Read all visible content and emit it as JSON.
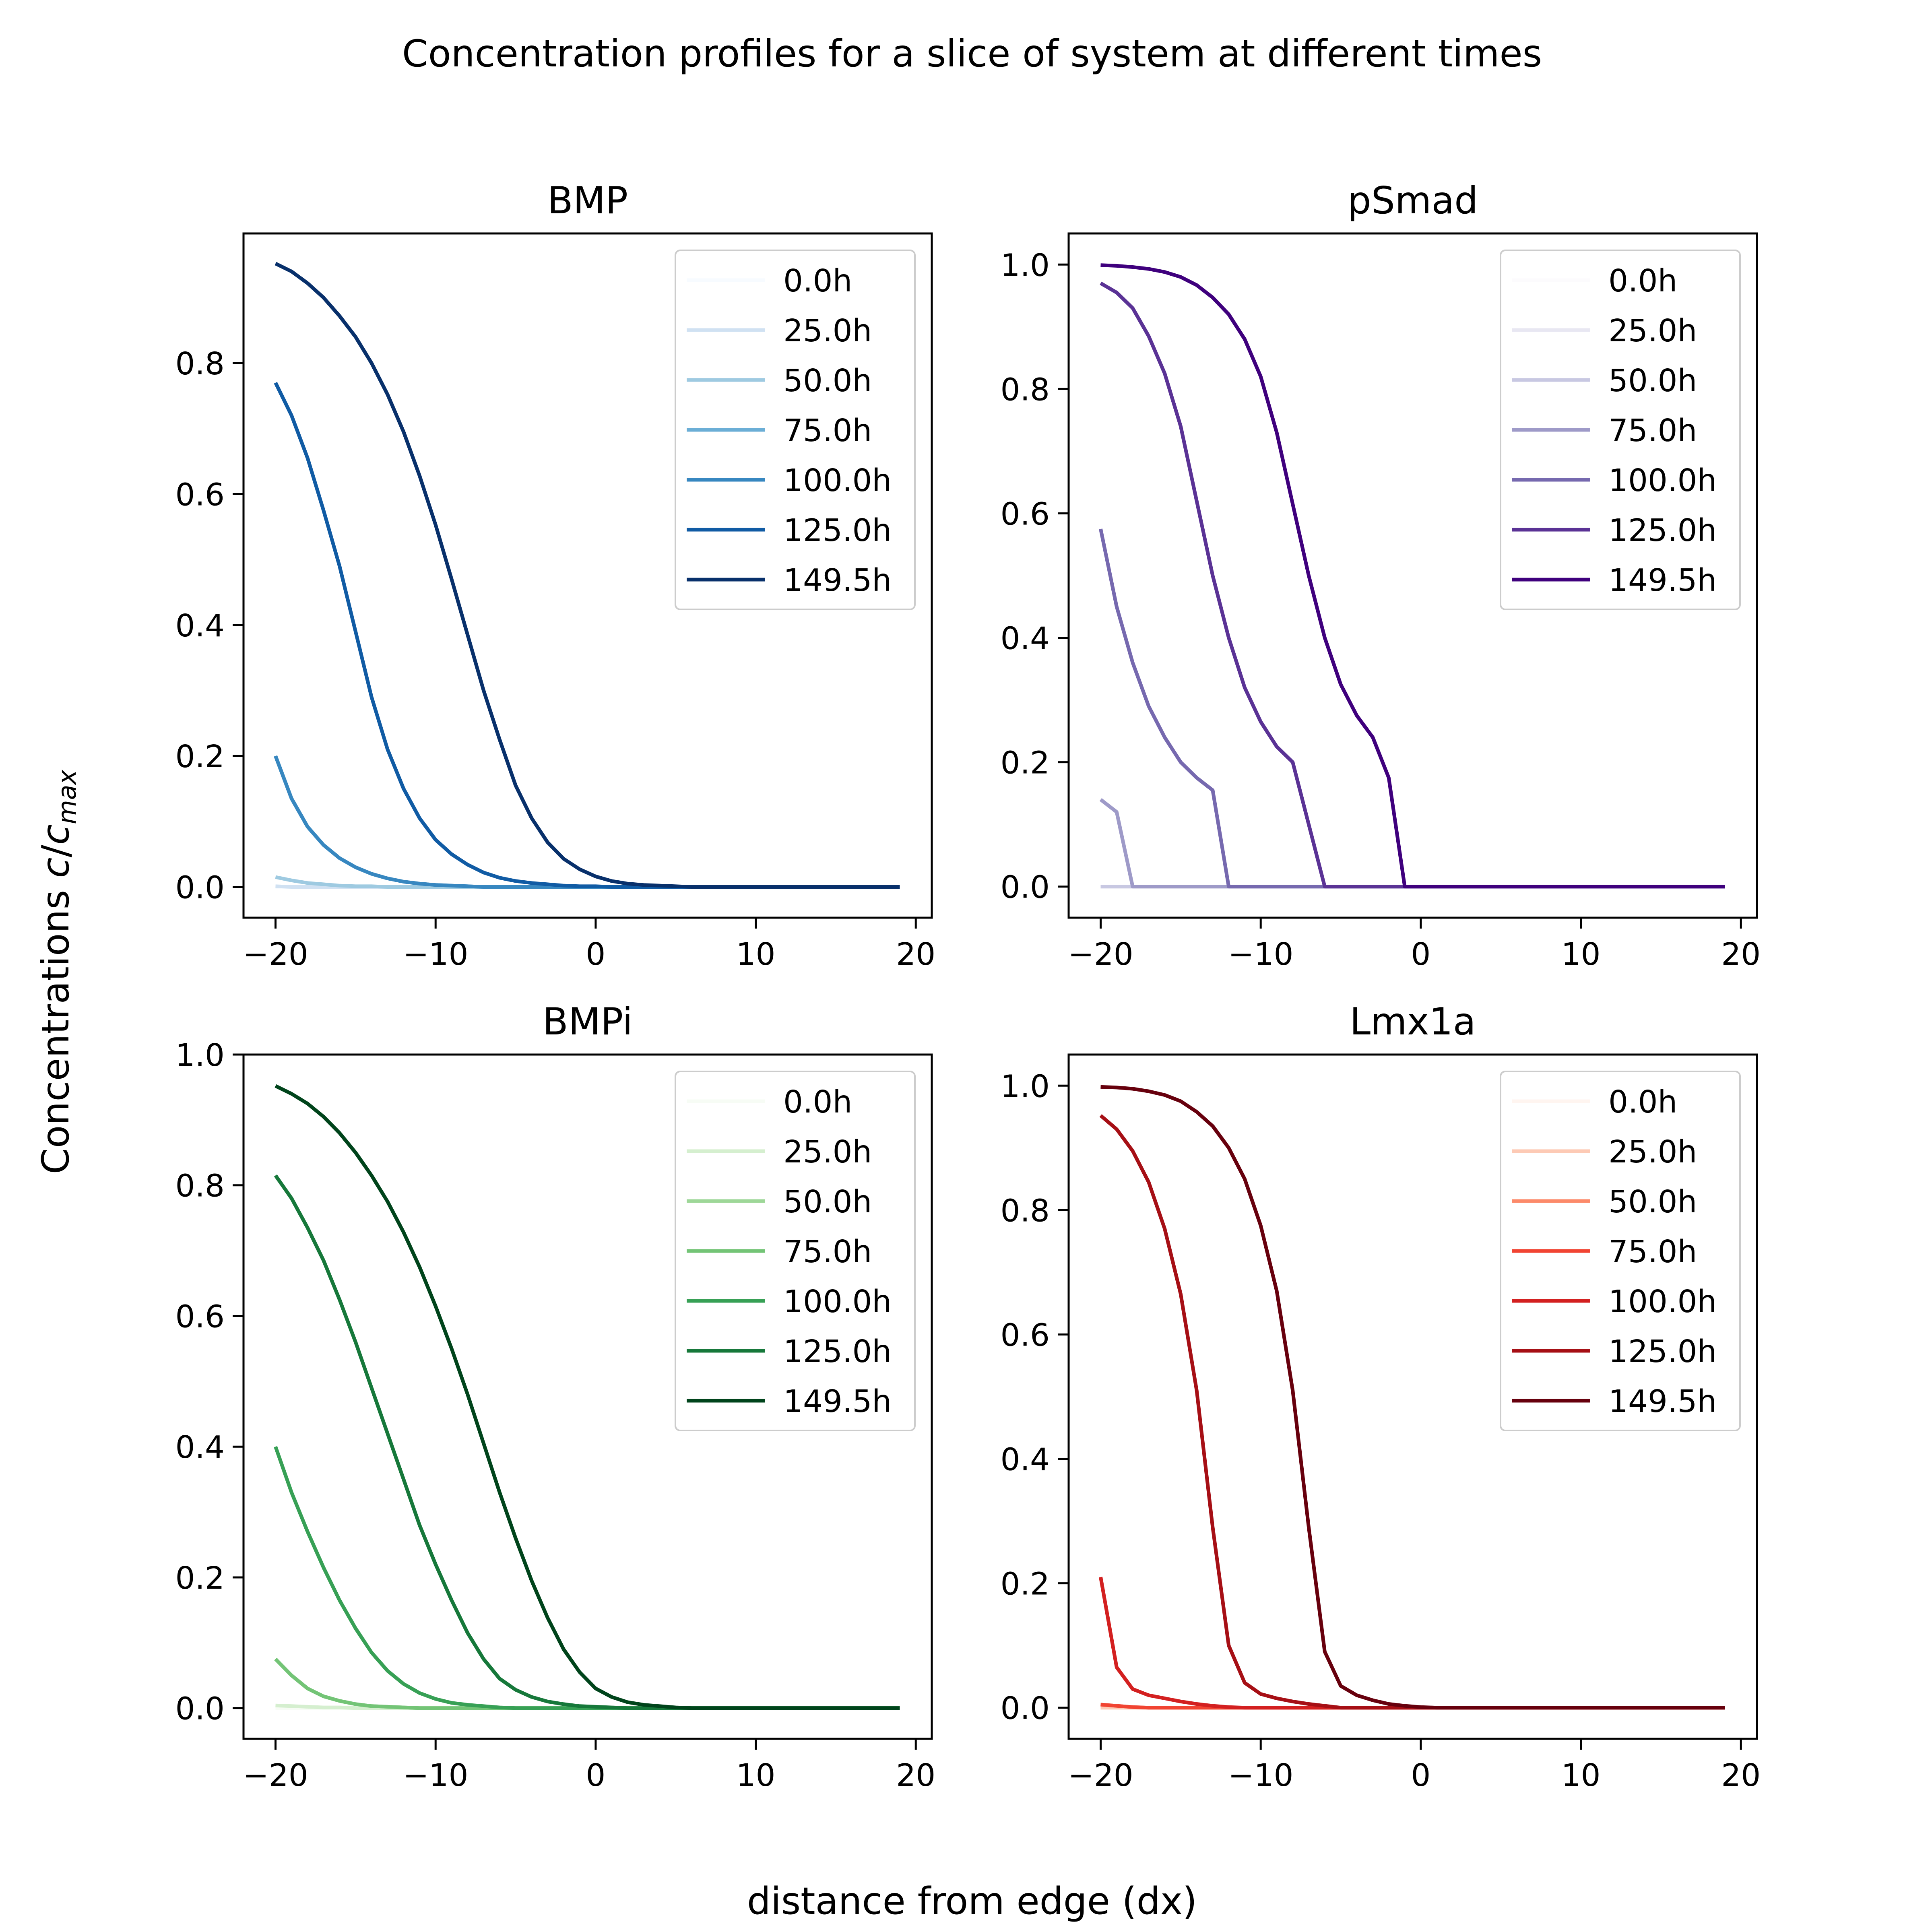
{
  "figure": {
    "suptitle": "Concentration profiles for a slice of system at different times",
    "xlabel": "distance from edge (dx)",
    "ylabel": {
      "main": "Concentrations ",
      "var": "c",
      "slash": "/",
      "sub": "max"
    }
  },
  "chart_data": [
    {
      "type": "line",
      "title": "BMP",
      "xlim": [
        -22,
        21
      ],
      "ylim": [
        -0.047,
        0.998
      ],
      "xticks": [
        -20,
        -10,
        0,
        10,
        20
      ],
      "xtick_labels": [
        "−20",
        "−10",
        "0",
        "10",
        "20"
      ],
      "yticks": [
        0.0,
        0.2,
        0.4,
        0.6,
        0.8
      ],
      "ytick_labels": [
        "0.0",
        "0.2",
        "0.4",
        "0.6",
        "0.8"
      ],
      "legend_position": "upper right",
      "series": [
        {
          "name": "0.0h",
          "color": "#f7fbff",
          "x_start": -20,
          "x_end": 19,
          "y": [
            0.0,
            0.0
          ]
        },
        {
          "name": "25.0h",
          "color": "#d0e1f2",
          "x_start": -20,
          "x_end": 19,
          "y": [
            0.001,
            0.0,
            0.0
          ]
        },
        {
          "name": "50.0h",
          "color": "#9ecae1",
          "x_start": -20,
          "x_end": 19,
          "y": [
            0.015,
            0.01,
            0.006,
            0.004,
            0.002,
            0.001,
            0.001,
            0.0,
            0.0
          ]
        },
        {
          "name": "75.0h",
          "color": "#6baed6",
          "x_start": -20,
          "x_end": 19,
          "y": [
            0.2,
            0.135,
            0.092,
            0.064,
            0.044,
            0.03,
            0.02,
            0.013,
            0.008,
            0.005,
            0.003,
            0.002,
            0.001,
            0.0,
            0.0
          ]
        },
        {
          "name": "100.0h",
          "color": "#3787c0",
          "x_start": -20,
          "x_end": 19,
          "y": [
            0.2,
            0.135,
            0.092,
            0.064,
            0.044,
            0.03,
            0.02,
            0.013,
            0.008,
            0.005,
            0.003,
            0.002,
            0.001,
            0.0,
            0.0
          ]
        },
        {
          "name": "125.0h",
          "color": "#105ba4",
          "x_start": -20,
          "x_end": 19,
          "y": [
            0.77,
            0.72,
            0.655,
            0.575,
            0.49,
            0.39,
            0.29,
            0.21,
            0.15,
            0.105,
            0.072,
            0.05,
            0.034,
            0.022,
            0.014,
            0.009,
            0.006,
            0.004,
            0.002,
            0.001,
            0.001,
            0.0,
            0.0
          ]
        },
        {
          "name": "149.5h",
          "color": "#08306b",
          "x_start": -20,
          "x_end": 19,
          "y": [
            0.952,
            0.94,
            0.922,
            0.9,
            0.872,
            0.84,
            0.8,
            0.752,
            0.695,
            0.628,
            0.553,
            0.47,
            0.385,
            0.3,
            0.225,
            0.155,
            0.105,
            0.068,
            0.043,
            0.027,
            0.016,
            0.009,
            0.005,
            0.003,
            0.002,
            0.001,
            0.0,
            0.0
          ]
        }
      ]
    },
    {
      "type": "line",
      "title": "pSmad",
      "xlim": [
        -22,
        21
      ],
      "ylim": [
        -0.05,
        1.05
      ],
      "xticks": [
        -20,
        -10,
        0,
        10,
        20
      ],
      "xtick_labels": [
        "−20",
        "−10",
        "0",
        "10",
        "20"
      ],
      "yticks": [
        0.0,
        0.2,
        0.4,
        0.6,
        0.8,
        1.0
      ],
      "ytick_labels": [
        "0.0",
        "0.2",
        "0.4",
        "0.6",
        "0.8",
        "1.0"
      ],
      "legend_position": "upper right",
      "series": [
        {
          "name": "0.0h",
          "color": "#fcfbfd",
          "x_start": -20,
          "x_end": 19,
          "y": [
            0.0,
            0.0
          ]
        },
        {
          "name": "25.0h",
          "color": "#e8e7f2",
          "x_start": -20,
          "x_end": 19,
          "y": [
            0.0,
            0.0
          ]
        },
        {
          "name": "50.0h",
          "color": "#c8c8e2",
          "x_start": -20,
          "x_end": 19,
          "y": [
            0.0,
            0.0
          ]
        },
        {
          "name": "75.0h",
          "color": "#9e9ac8",
          "x_start": -20,
          "x_end": 19,
          "y": [
            0.14,
            0.12,
            0.0,
            0.0
          ]
        },
        {
          "name": "100.0h",
          "color": "#7669af",
          "x_start": -20,
          "x_end": 19,
          "y": [
            0.575,
            0.45,
            0.36,
            0.29,
            0.24,
            0.2,
            0.175,
            0.155,
            0.0,
            0.0
          ]
        },
        {
          "name": "125.0h",
          "color": "#5a3295",
          "x_start": -20,
          "x_end": 19,
          "y": [
            0.97,
            0.955,
            0.93,
            0.885,
            0.825,
            0.74,
            0.62,
            0.5,
            0.4,
            0.32,
            0.265,
            0.225,
            0.2,
            0.1,
            0.0,
            0.0
          ]
        },
        {
          "name": "149.5h",
          "color": "#3f007d",
          "x_start": -20,
          "x_end": 19,
          "y": [
            0.999,
            0.998,
            0.996,
            0.993,
            0.988,
            0.98,
            0.967,
            0.947,
            0.92,
            0.88,
            0.82,
            0.73,
            0.615,
            0.5,
            0.4,
            0.325,
            0.275,
            0.24,
            0.175,
            0.0,
            0.0
          ]
        }
      ]
    },
    {
      "type": "line",
      "title": "BMPi",
      "xlim": [
        -22,
        21
      ],
      "ylim": [
        -0.047,
        1.0
      ],
      "xticks": [
        -20,
        -10,
        0,
        10,
        20
      ],
      "xtick_labels": [
        "−20",
        "−10",
        "0",
        "10",
        "20"
      ],
      "yticks": [
        0.0,
        0.2,
        0.4,
        0.6,
        0.8,
        1.0
      ],
      "ytick_labels": [
        "0.0",
        "0.2",
        "0.4",
        "0.6",
        "0.8",
        "1.0"
      ],
      "legend_position": "upper right",
      "series": [
        {
          "name": "0.0h",
          "color": "#f7fcf5",
          "x_start": -20,
          "x_end": 19,
          "y": [
            0.0,
            0.0
          ]
        },
        {
          "name": "25.0h",
          "color": "#d5efcf",
          "x_start": -20,
          "x_end": 19,
          "y": [
            0.004,
            0.003,
            0.002,
            0.001,
            0.001,
            0.0,
            0.0
          ]
        },
        {
          "name": "50.0h",
          "color": "#9ed798",
          "x_start": -20,
          "x_end": 19,
          "y": [
            0.075,
            0.05,
            0.03,
            0.018,
            0.011,
            0.006,
            0.003,
            0.002,
            0.001,
            0.0,
            0.0
          ]
        },
        {
          "name": "75.0h",
          "color": "#73c476",
          "x_start": -20,
          "x_end": 19,
          "y": [
            0.075,
            0.05,
            0.03,
            0.018,
            0.011,
            0.006,
            0.003,
            0.002,
            0.001,
            0.0,
            0.0
          ]
        },
        {
          "name": "100.0h",
          "color": "#37a055",
          "x_start": -20,
          "x_end": 19,
          "y": [
            0.4,
            0.33,
            0.27,
            0.215,
            0.165,
            0.122,
            0.085,
            0.057,
            0.037,
            0.023,
            0.014,
            0.008,
            0.005,
            0.003,
            0.001,
            0.0,
            0.0
          ]
        },
        {
          "name": "125.0h",
          "color": "#16783a",
          "x_start": -20,
          "x_end": 19,
          "y": [
            0.815,
            0.78,
            0.735,
            0.685,
            0.625,
            0.56,
            0.49,
            0.42,
            0.35,
            0.28,
            0.22,
            0.165,
            0.115,
            0.075,
            0.045,
            0.028,
            0.017,
            0.01,
            0.006,
            0.003,
            0.002,
            0.001,
            0.0,
            0.0
          ]
        },
        {
          "name": "149.5h",
          "color": "#00441b",
          "x_start": -20,
          "x_end": 19,
          "y": [
            0.952,
            0.94,
            0.925,
            0.905,
            0.88,
            0.85,
            0.815,
            0.775,
            0.728,
            0.675,
            0.615,
            0.55,
            0.48,
            0.405,
            0.33,
            0.26,
            0.195,
            0.138,
            0.09,
            0.055,
            0.03,
            0.017,
            0.009,
            0.005,
            0.003,
            0.001,
            0.0,
            0.0
          ]
        }
      ]
    },
    {
      "type": "line",
      "title": "Lmx1a",
      "xlim": [
        -22,
        21
      ],
      "ylim": [
        -0.05,
        1.05
      ],
      "xticks": [
        -20,
        -10,
        0,
        10,
        20
      ],
      "xtick_labels": [
        "−20",
        "−10",
        "0",
        "10",
        "20"
      ],
      "yticks": [
        0.0,
        0.2,
        0.4,
        0.6,
        0.8,
        1.0
      ],
      "ytick_labels": [
        "0.0",
        "0.2",
        "0.4",
        "0.6",
        "0.8",
        "1.0"
      ],
      "legend_position": "upper right",
      "series": [
        {
          "name": "0.0h",
          "color": "#fff5f0",
          "x_start": -20,
          "x_end": 19,
          "y": [
            0.0,
            0.0
          ]
        },
        {
          "name": "25.0h",
          "color": "#fdcab5",
          "x_start": -20,
          "x_end": 19,
          "y": [
            0.0,
            0.0
          ]
        },
        {
          "name": "50.0h",
          "color": "#fc8a6a",
          "x_start": -20,
          "x_end": 19,
          "y": [
            0.005,
            0.003,
            0.001,
            0.0,
            0.0
          ]
        },
        {
          "name": "75.0h",
          "color": "#f14432",
          "x_start": -20,
          "x_end": 19,
          "y": [
            0.005,
            0.003,
            0.001,
            0.0,
            0.0
          ]
        },
        {
          "name": "100.0h",
          "color": "#d32020",
          "x_start": -20,
          "x_end": 19,
          "y": [
            0.21,
            0.065,
            0.03,
            0.02,
            0.015,
            0.01,
            0.006,
            0.003,
            0.001,
            0.0,
            0.0
          ]
        },
        {
          "name": "125.0h",
          "color": "#a60f15",
          "x_start": -20,
          "x_end": 19,
          "y": [
            0.952,
            0.93,
            0.895,
            0.845,
            0.77,
            0.665,
            0.51,
            0.29,
            0.1,
            0.04,
            0.022,
            0.015,
            0.01,
            0.006,
            0.003,
            0.0,
            0.0
          ]
        },
        {
          "name": "149.5h",
          "color": "#67000d",
          "x_start": -20,
          "x_end": 19,
          "y": [
            0.998,
            0.997,
            0.995,
            0.991,
            0.985,
            0.975,
            0.958,
            0.935,
            0.9,
            0.85,
            0.775,
            0.67,
            0.51,
            0.29,
            0.09,
            0.035,
            0.02,
            0.012,
            0.006,
            0.003,
            0.001,
            0.0,
            0.0
          ]
        }
      ]
    }
  ]
}
